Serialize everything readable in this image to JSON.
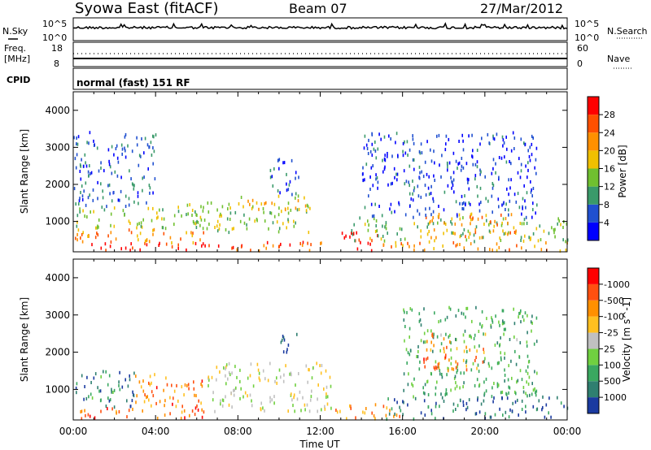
{
  "header": {
    "station": "Syowa East (fitACF)",
    "beam": "Beam 07",
    "date": "27/Mar/2012"
  },
  "noise_panel": {
    "left_label": "N.Sky",
    "right_label": "N.Search",
    "left_ticks": [
      "10^5",
      "10^0"
    ],
    "right_ticks": [
      "10^5",
      "10^0"
    ]
  },
  "freq_panel": {
    "left_label_1": "Freq.",
    "left_label_2": "[MHz]",
    "right_label": "Nave",
    "left_ticks": [
      "18",
      "8"
    ],
    "right_ticks": [
      "60",
      "0"
    ]
  },
  "cpid_panel": {
    "label": "CPID",
    "text": "normal (fast) 151 RF"
  },
  "chart_data": [
    {
      "type": "heatmap",
      "quantity": "Power",
      "xlabel": "",
      "ylabel": "Slant Range [km]",
      "x_ticks": [
        "00:00",
        "04:00",
        "08:00",
        "12:00",
        "16:00",
        "20:00",
        "00:00"
      ],
      "y_ticks": [
        "1000",
        "2000",
        "3000",
        "4000"
      ],
      "ylim": [
        180,
        4500
      ],
      "colorbar": {
        "label": "Power [dB]",
        "ticks": [
          "4",
          "8",
          "12",
          "16",
          "20",
          "24",
          "28"
        ],
        "range": [
          0,
          32
        ],
        "colors": [
          "#0000ff",
          "#2050d0",
          "#3a9a6a",
          "#70c030",
          "#f0c000",
          "#ff9000",
          "#ff5000",
          "#ff0000"
        ]
      },
      "echo_regions": [
        {
          "t0": 0.0,
          "t1": 6.5,
          "r0": 200,
          "r1": 420,
          "level": 0.95
        },
        {
          "t0": 0.0,
          "t1": 6.5,
          "r0": 420,
          "r1": 800,
          "level": 0.7
        },
        {
          "t0": 0.0,
          "t1": 6.5,
          "r0": 800,
          "r1": 1400,
          "level": 0.45
        },
        {
          "t0": 0.0,
          "t1": 4.0,
          "r0": 1400,
          "r1": 3400,
          "level": 0.2
        },
        {
          "t0": 5.5,
          "t1": 11.5,
          "r0": 700,
          "r1": 1500,
          "level": 0.45
        },
        {
          "t0": 8.0,
          "t1": 11.5,
          "r0": 1300,
          "r1": 1700,
          "level": 0.6
        },
        {
          "t0": 9.5,
          "t1": 11.0,
          "r0": 1700,
          "r1": 2700,
          "level": 0.2
        },
        {
          "t0": 6.5,
          "t1": 12.5,
          "r0": 200,
          "r1": 450,
          "level": 0.8
        },
        {
          "t0": 13.0,
          "t1": 14.8,
          "r0": 200,
          "r1": 750,
          "level": 0.98
        },
        {
          "t0": 14.8,
          "t1": 24.0,
          "r0": 200,
          "r1": 450,
          "level": 0.7
        },
        {
          "t0": 13.5,
          "t1": 24.0,
          "r0": 450,
          "r1": 1100,
          "level": 0.4
        },
        {
          "t0": 17.0,
          "t1": 21.5,
          "r0": 500,
          "r1": 1200,
          "level": 0.65
        },
        {
          "t0": 14.0,
          "t1": 22.5,
          "r0": 1100,
          "r1": 3400,
          "level": 0.15
        }
      ]
    },
    {
      "type": "heatmap",
      "quantity": "Velocity",
      "xlabel": "Time UT",
      "ylabel": "Slant Range [km]",
      "x_ticks": [
        "00:00",
        "04:00",
        "08:00",
        "12:00",
        "16:00",
        "20:00",
        "00:00"
      ],
      "y_ticks": [
        "1000",
        "2000",
        "3000",
        "4000"
      ],
      "ylim": [
        180,
        4500
      ],
      "colorbar": {
        "label": "Velocity [m s^-1]",
        "ticks": [
          "1000",
          "500",
          "100",
          "25",
          "-25",
          "-100",
          "-500",
          "-1000"
        ],
        "colors": [
          "#1a3aa0",
          "#2f7f70",
          "#3aa860",
          "#70d040",
          "#c0c0c0",
          "#ffc020",
          "#ff9000",
          "#ff5010",
          "#ff0000"
        ]
      },
      "echo_regions": [
        {
          "t0": 0.0,
          "t1": 6.5,
          "r0": 200,
          "r1": 500,
          "level": 0.8
        },
        {
          "t0": 0.0,
          "t1": 3.0,
          "r0": 500,
          "r1": 1500,
          "level": 0.2
        },
        {
          "t0": 3.0,
          "t1": 6.5,
          "r0": 500,
          "r1": 1400,
          "level": 0.75
        },
        {
          "t0": 6.5,
          "t1": 12.5,
          "r0": 400,
          "r1": 1700,
          "level": 0.5
        },
        {
          "t0": 10.0,
          "t1": 11.0,
          "r0": 2000,
          "r1": 2600,
          "level": 0.1
        },
        {
          "t0": 12.5,
          "t1": 16.0,
          "r0": 200,
          "r1": 600,
          "level": 0.75
        },
        {
          "t0": 15.0,
          "t1": 24.0,
          "r0": 200,
          "r1": 800,
          "level": 0.15
        },
        {
          "t0": 16.0,
          "t1": 22.5,
          "r0": 800,
          "r1": 3200,
          "level": 0.3
        },
        {
          "t0": 17.0,
          "t1": 20.0,
          "r0": 1500,
          "r1": 2500,
          "level": 0.75
        }
      ]
    }
  ]
}
